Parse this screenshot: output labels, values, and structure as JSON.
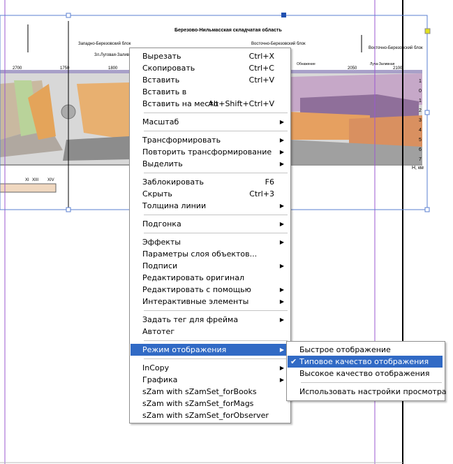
{
  "figure": {
    "labels": [
      "Березово-Нильмасская складчатая область",
      "Западно-Березовский блок",
      "Восточно-Березовский блок",
      "Восточно-Березовский блок",
      "Зл.Луговая-Залив",
      "Луча-Заливная",
      "Обнажение"
    ],
    "scale": [
      "2700",
      "1750",
      "1800",
      "2050",
      "2100"
    ],
    "depth": [
      "1",
      "0",
      "1",
      "2",
      "3",
      "4",
      "5",
      "6",
      "7"
    ],
    "depth_unit": "H, км",
    "legend": [
      "XI",
      "XIII",
      "XIV"
    ]
  },
  "menu": {
    "groups": [
      [
        {
          "label": "Вырезать",
          "shortcut": "Ctrl+X"
        },
        {
          "label": "Скопировать",
          "shortcut": "Ctrl+C"
        },
        {
          "label": "Вставить",
          "shortcut": "Ctrl+V"
        },
        {
          "label": "Вставить в"
        },
        {
          "label": "Вставить на место",
          "shortcut": "Alt+Shift+Ctrl+V"
        }
      ],
      [
        {
          "label": "Масштаб",
          "submenu": true
        }
      ],
      [
        {
          "label": "Трансформировать",
          "submenu": true
        },
        {
          "label": "Повторить трансформирование",
          "submenu": true
        },
        {
          "label": "Выделить",
          "submenu": true
        }
      ],
      [
        {
          "label": "Заблокировать",
          "shortcut": "F6"
        },
        {
          "label": "Скрыть",
          "shortcut": "Ctrl+3"
        },
        {
          "label": "Толщина линии",
          "submenu": true
        }
      ],
      [
        {
          "label": "Подгонка",
          "submenu": true
        }
      ],
      [
        {
          "label": "Эффекты",
          "submenu": true
        },
        {
          "label": "Параметры слоя объектов..."
        },
        {
          "label": "Подписи",
          "submenu": true
        },
        {
          "label": "Редактировать оригинал"
        },
        {
          "label": "Редактировать с помощью",
          "submenu": true
        },
        {
          "label": "Интерактивные элементы",
          "submenu": true
        }
      ],
      [
        {
          "label": "Задать тег для фрейма",
          "submenu": true
        },
        {
          "label": "Автотег"
        }
      ],
      [
        {
          "label": "Режим отображения",
          "submenu": true,
          "highlighted": true
        }
      ],
      [
        {
          "label": "InCopy",
          "submenu": true
        },
        {
          "label": "Графика",
          "submenu": true
        },
        {
          "label": "sZam with sZamSet_forBooks"
        },
        {
          "label": "sZam with sZamSet_forMags"
        },
        {
          "label": "sZam with sZamSet_forObserver"
        }
      ]
    ]
  },
  "submenu": {
    "groups": [
      [
        {
          "label": "Быстрое отображение"
        },
        {
          "label": "Типовое качество отображения",
          "checked": true,
          "highlighted": true
        },
        {
          "label": "Высокое качество отображения"
        }
      ],
      [
        {
          "label": "Использовать настройки просмотра"
        }
      ]
    ]
  }
}
